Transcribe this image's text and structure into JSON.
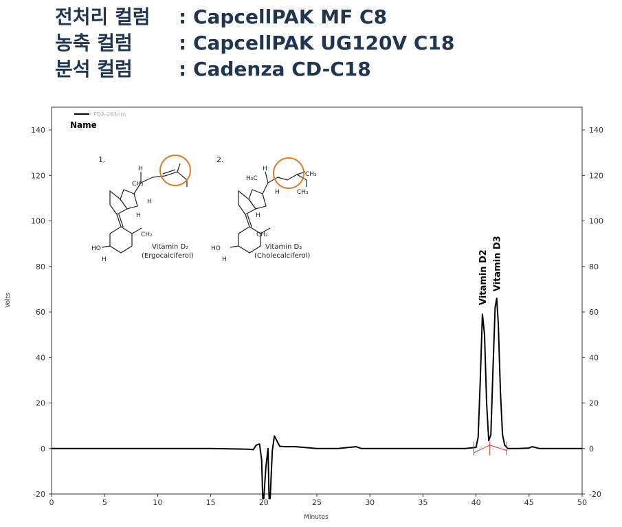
{
  "header": {
    "rows": [
      {
        "label": "전처리 컬럼",
        "value": ": CapcellPAK MF C8"
      },
      {
        "label": "농축 컬럼",
        "value": ": CapcellPAK UG120V C18"
      },
      {
        "label": "분석 컬럼",
        "value": ": Cadenza CD-C18"
      }
    ]
  },
  "structures": {
    "s1": {
      "number": "1.",
      "name": "Vitamin D₂",
      "common": "(Ergocalciferol)"
    },
    "s2": {
      "number": "2.",
      "name": "Vitamin D₃",
      "common": "(Cholecalciferol)"
    },
    "atoms": {
      "h": "H",
      "ch3": "CH₃",
      "h3c": "H₃C",
      "ch2": "CH₂",
      "ho": "HO"
    }
  },
  "colors": {
    "trace": "#000000",
    "highlight_circle": "#e07b2c",
    "integration": "#e03030",
    "axis": "#333333"
  },
  "chart_data": {
    "type": "line",
    "title": "",
    "legend": {
      "entries": [
        "PDA-264nm"
      ],
      "header": "Name",
      "placement": "top-left"
    },
    "xlabel": "Minutes",
    "ylabel": "Volts",
    "xlim": [
      0,
      50
    ],
    "ylim": [
      -20,
      150
    ],
    "xticks": [
      0,
      5,
      10,
      15,
      20,
      25,
      30,
      35,
      40,
      45,
      50
    ],
    "yticks": [
      -20,
      0,
      20,
      40,
      60,
      80,
      100,
      120,
      140
    ],
    "grid": false,
    "right_axis": true,
    "series": [
      {
        "name": "PDA-264nm",
        "x": [
          0,
          5,
          10,
          15,
          18.5,
          19.0,
          19.3,
          19.6,
          19.8,
          19.9,
          20.0,
          20.2,
          20.4,
          20.5,
          20.6,
          20.8,
          21.0,
          21.5,
          22,
          23,
          25,
          27,
          28.7,
          29.2,
          31,
          33,
          35,
          37,
          39,
          40.0,
          40.2,
          40.4,
          40.6,
          40.8,
          41.0,
          41.2,
          41.4,
          41.6,
          41.8,
          41.95,
          42.1,
          42.3,
          42.5,
          42.7,
          43.0,
          44,
          45,
          45.3,
          46,
          48,
          50
        ],
        "y": [
          0,
          0,
          0,
          0,
          -0.3,
          -0.5,
          1.5,
          2.0,
          -5,
          -22,
          -22,
          -8,
          0,
          -22,
          -22,
          -1,
          5.5,
          1,
          0.8,
          0.8,
          0,
          0,
          0.8,
          0,
          0,
          0,
          0,
          0,
          0,
          0.5,
          5,
          30,
          59,
          50,
          20,
          3.5,
          6,
          35,
          62,
          66,
          55,
          25,
          6,
          1.5,
          0,
          0,
          0.2,
          0.8,
          0,
          0,
          0
        ]
      }
    ],
    "annotations": [
      {
        "text": "Vitamin D2",
        "x": 40.6,
        "y": 60
      },
      {
        "text": "Vitamin D3",
        "x": 41.95,
        "y": 66
      }
    ],
    "integration_marks_x": [
      39.8,
      41.3,
      42.9
    ]
  }
}
